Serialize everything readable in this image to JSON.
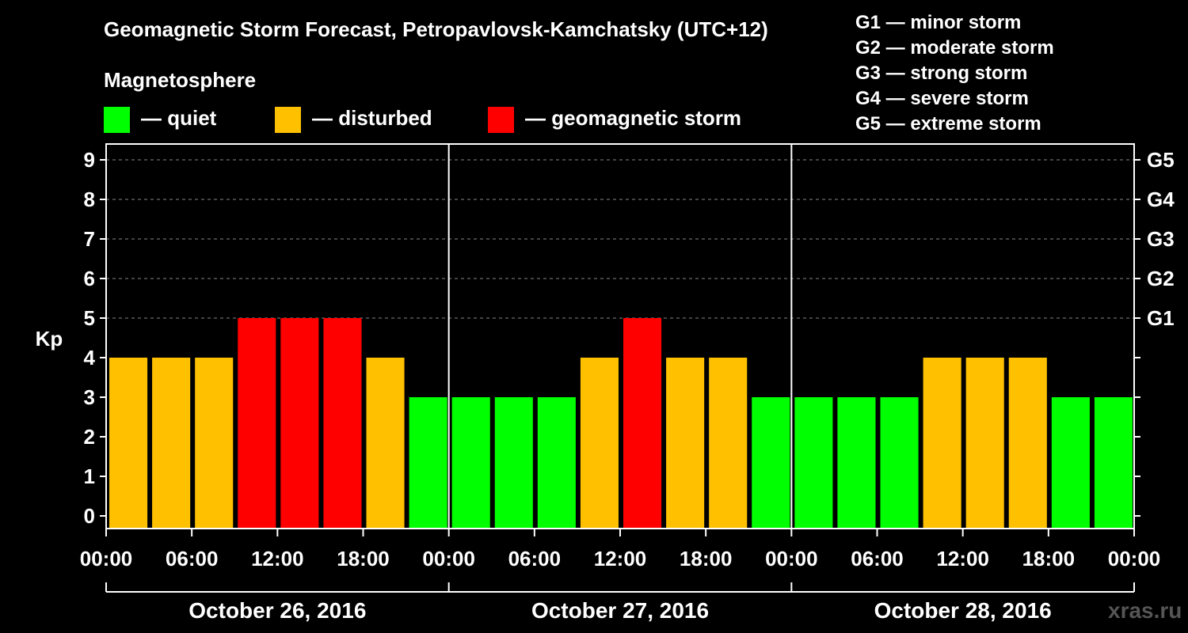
{
  "chart_data": {
    "type": "bar",
    "title": "Geomagnetic Storm Forecast, Petropavlovsk-Kamchatsky (UTC+12)",
    "ylabel": "Kp",
    "ylim": [
      0,
      9
    ],
    "yticks": [
      "0",
      "1",
      "2",
      "3",
      "4",
      "5",
      "6",
      "7",
      "8",
      "9"
    ],
    "right_axis_ticks": [
      {
        "kp": 5,
        "label": "G1"
      },
      {
        "kp": 6,
        "label": "G2"
      },
      {
        "kp": 7,
        "label": "G3"
      },
      {
        "kp": 8,
        "label": "G4"
      },
      {
        "kp": 9,
        "label": "G5"
      }
    ],
    "grid": "horizontal dashed at Kp 5-9",
    "xtick_labels": [
      "00:00",
      "06:00",
      "12:00",
      "18:00",
      "00:00",
      "06:00",
      "12:00",
      "18:00",
      "00:00",
      "06:00",
      "12:00",
      "18:00",
      "00:00"
    ],
    "days": [
      "October 26, 2016",
      "October 27, 2016",
      "October 28, 2016"
    ],
    "interval_hours": 3,
    "values": [
      4,
      4,
      4,
      5,
      5,
      5,
      4,
      3,
      3,
      3,
      3,
      4,
      5,
      4,
      4,
      3,
      3,
      3,
      3,
      4,
      4,
      4,
      3,
      3
    ],
    "colors": {
      "quiet": "#00ff00",
      "disturbed": "#ffc000",
      "storm": "#ff0000"
    },
    "legend": {
      "heading": "Magnetosphere",
      "items": [
        {
          "key": "quiet",
          "label": "— quiet"
        },
        {
          "key": "disturbed",
          "label": "— disturbed"
        },
        {
          "key": "storm",
          "label": "— geomagnetic storm"
        }
      ]
    },
    "storm_levels": [
      "G1 — minor storm",
      "G2 — moderate storm",
      "G3 — strong storm",
      "G4 — severe storm",
      "G5 — extreme storm"
    ]
  },
  "watermark": "xras.ru"
}
